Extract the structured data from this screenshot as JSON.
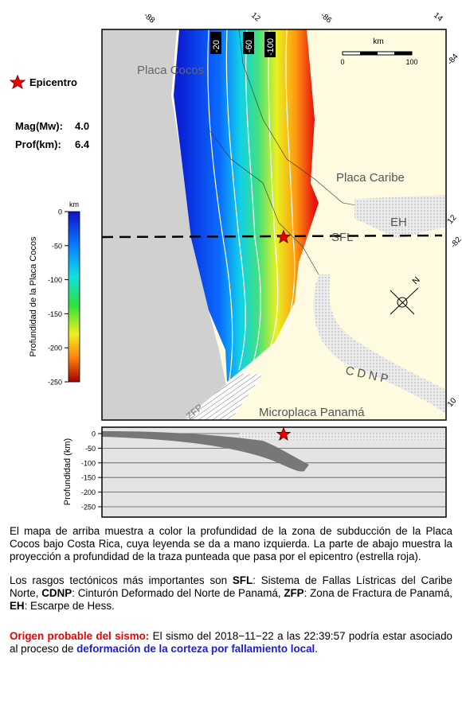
{
  "legend": {
    "epicenter": "Epicentro",
    "mag_label": "Mag(Mw):",
    "mag_value": "4.0",
    "depth_label": "Prof(km):",
    "depth_value": "6.4",
    "colorbar_unit": "km",
    "colorbar_title": "Profundidad de la Placa Cocos",
    "colorbar_ticks": [
      0,
      -50,
      -100,
      -150,
      -200,
      -250
    ]
  },
  "map": {
    "frame_labels": [
      "-88",
      "12",
      "-86",
      "14",
      "-84",
      "12",
      "-82",
      "10"
    ],
    "contour_labels": [
      "-20",
      "-60",
      "-100"
    ],
    "scale_unit": "km",
    "scale_start": "0",
    "scale_end": "100",
    "north": "N",
    "places": [
      "Placa Cocos",
      "Placa Caribe",
      "EH",
      "SFL",
      "CDNP",
      "ZFP",
      "Microplaca Panamá"
    ]
  },
  "profile": {
    "y_label": "Profundidad (km)",
    "yticks": [
      0,
      -50,
      -100,
      -150,
      -200,
      -250
    ]
  },
  "caption": {
    "p1": "El mapa de arriba muestra a color la profundidad de la zona de subducción de la Placa Cocos bajo Costa Rica, cuya leyenda se da a mano izquierda.  La parte de abajo muestra la proyección a profundidad de la traza punteada que pasa por el epicentro (estrella roja).",
    "p2": [
      "Los rasgos tectónicos más importantes son ",
      "SFL",
      ": Sistema de Fallas Lístricas del Caribe Norte, ",
      "CDNP",
      ": Cinturón Deformado del Norte de Panamá, ",
      "ZFP",
      ": Zona de Fractura de Panamá, ",
      "EH",
      ": Escarpe de Hess."
    ],
    "p3": [
      "Origen probable del sismo:",
      " El sismo del 2018−11−22 a las 22:39:57 podría estar asociado al proceso de ",
      "deformación de la corteza por fallamiento local",
      "."
    ]
  }
}
